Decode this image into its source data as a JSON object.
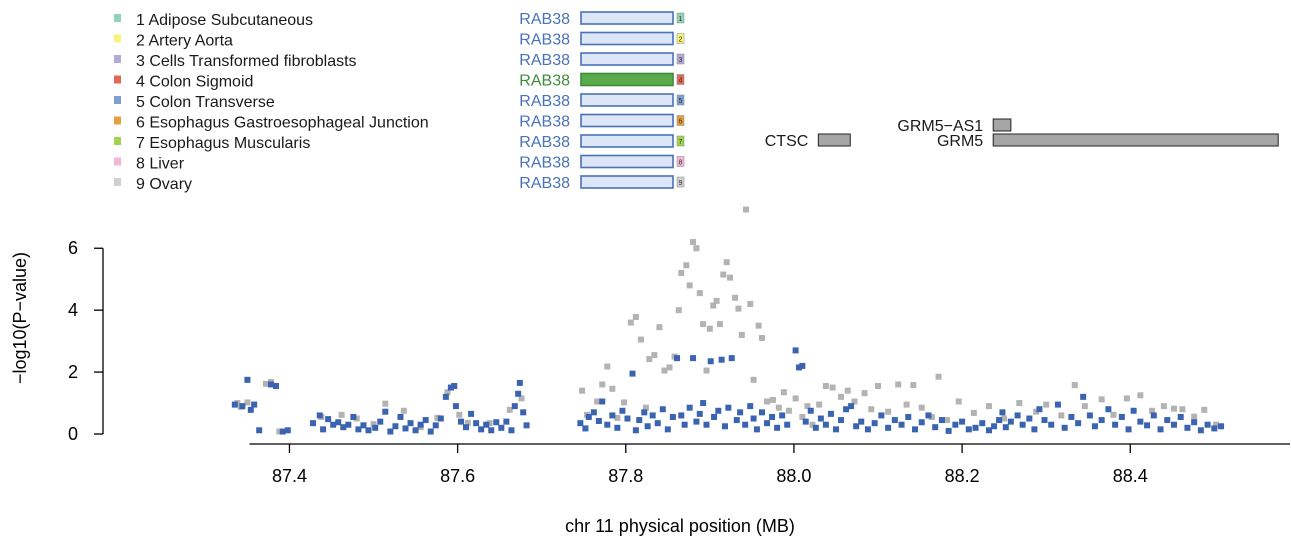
{
  "chart_data": {
    "type": "scatter",
    "xlabel": "chr 11 physical position (MB)",
    "ylabel": "−log10(P−value)",
    "xlim": [
      87.315,
      88.59
    ],
    "ylim": [
      0,
      7.3
    ],
    "x_ticks": [
      87.4,
      87.6,
      87.8,
      88.0,
      88.2,
      88.4
    ],
    "x_tick_labels": [
      "87.4",
      "87.6",
      "87.8",
      "88.0",
      "88.2",
      "88.4"
    ],
    "y_ticks": [
      0,
      2,
      4,
      6
    ],
    "y_tick_labels": [
      "0",
      "2",
      "4",
      "6"
    ],
    "legend_position": "top-left",
    "tissues": [
      {
        "label": "1 Adipose Subcutaneous",
        "color": "#8fd3b8"
      },
      {
        "label": "2 Artery Aorta",
        "color": "#f7f37e"
      },
      {
        "label": "3 Cells Transformed fibroblasts",
        "color": "#b5a9d9"
      },
      {
        "label": "4 Colon Sigmoid",
        "color": "#e06a55"
      },
      {
        "label": "5 Colon Transverse",
        "color": "#7f9fd1"
      },
      {
        "label": "6 Esophagus Gastroesophageal Junction",
        "color": "#e5a03e"
      },
      {
        "label": "7 Esophagus Muscularis",
        "color": "#9fd24e"
      },
      {
        "label": "8 Liver",
        "color": "#f2b7d8"
      },
      {
        "label": "9 Ovary",
        "color": "#cfcfcf"
      }
    ],
    "eqtl_gene": {
      "name": "RAB38",
      "highlight_index": 3,
      "default_color": "#4a72b8",
      "highlight_color": "#3c8c3c",
      "default_fill": "#dce6f7",
      "highlight_fill": "#5aaa4a",
      "badges": [
        "1",
        "2",
        "3",
        "4",
        "5",
        "6",
        "7",
        "8",
        "9"
      ]
    },
    "genes": [
      {
        "name": "GRM5−AS1",
        "start": 88.237,
        "end": 88.258
      },
      {
        "name": "CTSC",
        "start": 88.029,
        "end": 88.067
      },
      {
        "name": "GRM5",
        "start": 88.237,
        "end": 88.576
      }
    ],
    "series": [
      {
        "name": "gray",
        "color": "#b3b3b3",
        "points": [
          [
            87.338,
            1.0
          ],
          [
            87.35,
            1.02
          ],
          [
            87.342,
            0.88
          ],
          [
            87.372,
            1.62
          ],
          [
            87.378,
            1.68
          ],
          [
            87.388,
            0.08
          ],
          [
            87.438,
            0.55
          ],
          [
            87.462,
            0.62
          ],
          [
            87.48,
            0.5
          ],
          [
            87.5,
            0.32
          ],
          [
            87.514,
            0.98
          ],
          [
            87.536,
            0.75
          ],
          [
            87.556,
            0.22
          ],
          [
            87.576,
            0.52
          ],
          [
            87.588,
            1.35
          ],
          [
            87.602,
            0.62
          ],
          [
            87.612,
            0.36
          ],
          [
            87.638,
            0.35
          ],
          [
            87.662,
            0.78
          ],
          [
            87.676,
            1.15
          ],
          [
            87.748,
            1.4
          ],
          [
            87.754,
            0.62
          ],
          [
            87.766,
            1.05
          ],
          [
            87.772,
            1.6
          ],
          [
            87.778,
            2.18
          ],
          [
            87.784,
            1.46
          ],
          [
            87.79,
            0.52
          ],
          [
            87.798,
            1.02
          ],
          [
            87.806,
            3.6
          ],
          [
            87.812,
            3.78
          ],
          [
            87.818,
            3.05
          ],
          [
            87.824,
            0.85
          ],
          [
            87.828,
            2.42
          ],
          [
            87.834,
            2.55
          ],
          [
            87.84,
            3.45
          ],
          [
            87.846,
            2.05
          ],
          [
            87.852,
            2.15
          ],
          [
            87.858,
            2.5
          ],
          [
            87.863,
            4.0
          ],
          [
            87.866,
            5.2
          ],
          [
            87.872,
            5.45
          ],
          [
            87.876,
            4.8
          ],
          [
            87.88,
            6.2
          ],
          [
            87.884,
            6.0
          ],
          [
            87.888,
            4.55
          ],
          [
            87.892,
            3.55
          ],
          [
            87.896,
            2.05
          ],
          [
            87.9,
            3.4
          ],
          [
            87.904,
            4.15
          ],
          [
            87.908,
            4.3
          ],
          [
            87.912,
            3.55
          ],
          [
            87.916,
            5.15
          ],
          [
            87.92,
            5.55
          ],
          [
            87.924,
            5.05
          ],
          [
            87.93,
            4.4
          ],
          [
            87.934,
            4.05
          ],
          [
            87.938,
            3.2
          ],
          [
            87.943,
            7.25
          ],
          [
            87.948,
            4.2
          ],
          [
            87.952,
            1.75
          ],
          [
            87.958,
            3.5
          ],
          [
            87.962,
            3.1
          ],
          [
            87.968,
            1.05
          ],
          [
            87.975,
            1.1
          ],
          [
            87.982,
            0.85
          ],
          [
            87.988,
            1.35
          ],
          [
            87.994,
            0.75
          ],
          [
            88.002,
            1.15
          ],
          [
            88.01,
            0.55
          ],
          [
            88.016,
            0.9
          ],
          [
            88.022,
            0.3
          ],
          [
            88.03,
            0.95
          ],
          [
            88.038,
            1.55
          ],
          [
            88.046,
            1.5
          ],
          [
            88.056,
            1.2
          ],
          [
            88.064,
            1.4
          ],
          [
            88.072,
            1.05
          ],
          [
            88.084,
            1.32
          ],
          [
            88.092,
            0.8
          ],
          [
            88.1,
            1.55
          ],
          [
            88.112,
            0.72
          ],
          [
            88.124,
            1.6
          ],
          [
            88.134,
            0.95
          ],
          [
            88.142,
            1.58
          ],
          [
            88.152,
            0.85
          ],
          [
            88.164,
            0.55
          ],
          [
            88.172,
            1.85
          ],
          [
            88.182,
            0.45
          ],
          [
            88.196,
            1.05
          ],
          [
            88.214,
            0.68
          ],
          [
            88.232,
            0.9
          ],
          [
            88.25,
            0.5
          ],
          [
            88.268,
            1.0
          ],
          [
            88.288,
            0.72
          ],
          [
            88.3,
            0.95
          ],
          [
            88.318,
            0.6
          ],
          [
            88.334,
            1.58
          ],
          [
            88.346,
            0.9
          ],
          [
            88.366,
            1.12
          ],
          [
            88.38,
            0.62
          ],
          [
            88.396,
            1.15
          ],
          [
            88.412,
            1.25
          ],
          [
            88.426,
            0.75
          ],
          [
            88.44,
            0.9
          ],
          [
            88.452,
            0.82
          ],
          [
            88.462,
            0.8
          ],
          [
            88.476,
            0.56
          ],
          [
            88.488,
            0.78
          ],
          [
            88.502,
            0.3
          ]
        ]
      },
      {
        "name": "blue",
        "color": "#3a63b0",
        "points": [
          [
            87.335,
            0.95
          ],
          [
            87.344,
            0.9
          ],
          [
            87.35,
            1.75
          ],
          [
            87.354,
            0.78
          ],
          [
            87.358,
            0.95
          ],
          [
            87.364,
            0.12
          ],
          [
            87.378,
            1.6
          ],
          [
            87.384,
            1.55
          ],
          [
            87.392,
            0.08
          ],
          [
            87.398,
            0.12
          ],
          [
            87.428,
            0.35
          ],
          [
            87.436,
            0.6
          ],
          [
            87.44,
            0.15
          ],
          [
            87.446,
            0.48
          ],
          [
            87.452,
            0.3
          ],
          [
            87.458,
            0.38
          ],
          [
            87.464,
            0.22
          ],
          [
            87.47,
            0.3
          ],
          [
            87.476,
            0.55
          ],
          [
            87.482,
            0.15
          ],
          [
            87.488,
            0.28
          ],
          [
            87.494,
            0.12
          ],
          [
            87.502,
            0.2
          ],
          [
            87.508,
            0.4
          ],
          [
            87.514,
            0.72
          ],
          [
            87.52,
            0.08
          ],
          [
            87.526,
            0.25
          ],
          [
            87.532,
            0.55
          ],
          [
            87.538,
            0.18
          ],
          [
            87.544,
            0.35
          ],
          [
            87.55,
            0.12
          ],
          [
            87.556,
            0.3
          ],
          [
            87.562,
            0.45
          ],
          [
            87.568,
            0.08
          ],
          [
            87.574,
            0.28
          ],
          [
            87.58,
            0.5
          ],
          [
            87.586,
            1.2
          ],
          [
            87.592,
            1.5
          ],
          [
            87.596,
            1.55
          ],
          [
            87.598,
            0.9
          ],
          [
            87.604,
            0.4
          ],
          [
            87.61,
            0.22
          ],
          [
            87.616,
            0.65
          ],
          [
            87.622,
            0.35
          ],
          [
            87.628,
            0.15
          ],
          [
            87.634,
            0.3
          ],
          [
            87.64,
            0.12
          ],
          [
            87.646,
            0.38
          ],
          [
            87.652,
            0.2
          ],
          [
            87.658,
            0.4
          ],
          [
            87.664,
            0.12
          ],
          [
            87.668,
            0.9
          ],
          [
            87.672,
            1.3
          ],
          [
            87.674,
            1.65
          ],
          [
            87.678,
            0.7
          ],
          [
            87.682,
            0.28
          ],
          [
            87.746,
            0.35
          ],
          [
            87.752,
            0.18
          ],
          [
            87.756,
            0.55
          ],
          [
            87.762,
            0.7
          ],
          [
            87.768,
            0.42
          ],
          [
            87.772,
            1.05
          ],
          [
            87.778,
            0.3
          ],
          [
            87.784,
            0.6
          ],
          [
            87.79,
            0.2
          ],
          [
            87.796,
            0.75
          ],
          [
            87.802,
            0.5
          ],
          [
            87.808,
            1.95
          ],
          [
            87.812,
            0.12
          ],
          [
            87.816,
            0.45
          ],
          [
            87.822,
            0.7
          ],
          [
            87.826,
            0.25
          ],
          [
            87.832,
            0.6
          ],
          [
            87.838,
            0.35
          ],
          [
            87.844,
            0.8
          ],
          [
            87.85,
            0.15
          ],
          [
            87.856,
            0.55
          ],
          [
            87.861,
            2.45
          ],
          [
            87.866,
            0.6
          ],
          [
            87.87,
            0.3
          ],
          [
            87.876,
            0.85
          ],
          [
            87.88,
            2.45
          ],
          [
            87.884,
            0.4
          ],
          [
            87.888,
            0.65
          ],
          [
            87.892,
            1.0
          ],
          [
            87.896,
            0.3
          ],
          [
            87.901,
            2.35
          ],
          [
            87.905,
            0.55
          ],
          [
            87.91,
            0.75
          ],
          [
            87.914,
            2.4
          ],
          [
            87.918,
            0.25
          ],
          [
            87.922,
            0.85
          ],
          [
            87.926,
            2.45
          ],
          [
            87.932,
            0.45
          ],
          [
            87.936,
            0.7
          ],
          [
            87.942,
            0.3
          ],
          [
            87.948,
            0.9
          ],
          [
            87.952,
            0.5
          ],
          [
            87.956,
            0.15
          ],
          [
            87.962,
            0.7
          ],
          [
            87.968,
            0.35
          ],
          [
            87.974,
            0.55
          ],
          [
            87.98,
            0.2
          ],
          [
            87.986,
            0.6
          ],
          [
            87.992,
            0.3
          ],
          [
            88.002,
            2.7
          ],
          [
            88.006,
            2.15
          ],
          [
            88.01,
            2.2
          ],
          [
            88.014,
            0.4
          ],
          [
            88.02,
            0.75
          ],
          [
            88.026,
            0.2
          ],
          [
            88.032,
            0.5
          ],
          [
            88.038,
            0.3
          ],
          [
            88.044,
            0.65
          ],
          [
            88.05,
            0.15
          ],
          [
            88.056,
            0.45
          ],
          [
            88.062,
            0.8
          ],
          [
            88.068,
            0.9
          ],
          [
            88.074,
            0.25
          ],
          [
            88.08,
            0.4
          ],
          [
            88.088,
            0.15
          ],
          [
            88.096,
            0.35
          ],
          [
            88.104,
            0.6
          ],
          [
            88.112,
            0.2
          ],
          [
            88.12,
            0.45
          ],
          [
            88.128,
            0.3
          ],
          [
            88.136,
            0.55
          ],
          [
            88.144,
            0.15
          ],
          [
            88.152,
            0.38
          ],
          [
            88.16,
            0.6
          ],
          [
            88.168,
            0.22
          ],
          [
            88.176,
            0.45
          ],
          [
            88.184,
            0.1
          ],
          [
            88.192,
            0.3
          ],
          [
            88.2,
            0.4
          ],
          [
            88.208,
            0.15
          ],
          [
            88.216,
            0.2
          ],
          [
            88.224,
            0.35
          ],
          [
            88.232,
            0.12
          ],
          [
            88.238,
            0.25
          ],
          [
            88.244,
            0.45
          ],
          [
            88.248,
            0.7
          ],
          [
            88.252,
            0.22
          ],
          [
            88.258,
            0.4
          ],
          [
            88.266,
            0.6
          ],
          [
            88.272,
            0.3
          ],
          [
            88.28,
            0.5
          ],
          [
            88.286,
            0.15
          ],
          [
            88.292,
            0.8
          ],
          [
            88.298,
            0.45
          ],
          [
            88.306,
            0.3
          ],
          [
            88.314,
            0.95
          ],
          [
            88.322,
            0.2
          ],
          [
            88.33,
            0.55
          ],
          [
            88.338,
            0.35
          ],
          [
            88.344,
            1.2
          ],
          [
            88.352,
            0.6
          ],
          [
            88.358,
            0.25
          ],
          [
            88.366,
            0.45
          ],
          [
            88.374,
            0.8
          ],
          [
            88.382,
            0.3
          ],
          [
            88.39,
            0.55
          ],
          [
            88.398,
            0.15
          ],
          [
            88.404,
            0.75
          ],
          [
            88.412,
            0.4
          ],
          [
            88.42,
            0.28
          ],
          [
            88.428,
            0.6
          ],
          [
            88.436,
            0.15
          ],
          [
            88.444,
            0.45
          ],
          [
            88.452,
            0.3
          ],
          [
            88.46,
            0.55
          ],
          [
            88.468,
            0.2
          ],
          [
            88.476,
            0.38
          ],
          [
            88.484,
            0.12
          ],
          [
            88.492,
            0.3
          ],
          [
            88.5,
            0.18
          ],
          [
            88.508,
            0.25
          ]
        ]
      }
    ]
  }
}
